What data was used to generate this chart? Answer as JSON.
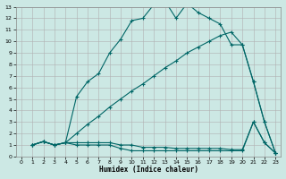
{
  "xlabel": "Humidex (Indice chaleur)",
  "bg_color": "#cce8e4",
  "grid_color": "#b0b0b0",
  "line_color": "#006666",
  "xlim": [
    -0.5,
    23.5
  ],
  "ylim": [
    0,
    13
  ],
  "xticks": [
    0,
    1,
    2,
    3,
    4,
    5,
    6,
    7,
    8,
    9,
    10,
    11,
    12,
    13,
    14,
    15,
    16,
    17,
    18,
    19,
    20,
    21,
    22,
    23
  ],
  "yticks": [
    0,
    1,
    2,
    3,
    4,
    5,
    6,
    7,
    8,
    9,
    10,
    11,
    12,
    13
  ],
  "line1_x": [
    1,
    2,
    3,
    4,
    5,
    6,
    7,
    8,
    9,
    10,
    11,
    12,
    13,
    14,
    15,
    16,
    17,
    18,
    19,
    20,
    21,
    22,
    23
  ],
  "line1_y": [
    1,
    1.3,
    1,
    1.2,
    5.2,
    6.5,
    7.2,
    9.0,
    10.2,
    11.8,
    12.0,
    13.2,
    13.5,
    12.0,
    13.3,
    12.5,
    12.0,
    11.5,
    9.7,
    9.7,
    6.5,
    3.0,
    0.3
  ],
  "line2_x": [
    1,
    2,
    3,
    4,
    5,
    6,
    7,
    8,
    9,
    10,
    11,
    12,
    13,
    14,
    15,
    16,
    17,
    18,
    19,
    20,
    21,
    22,
    23
  ],
  "line2_y": [
    1,
    1.3,
    1,
    1.2,
    2.0,
    2.8,
    3.5,
    4.3,
    5.0,
    5.7,
    6.3,
    7.0,
    7.7,
    8.3,
    9.0,
    9.5,
    10.0,
    10.5,
    10.8,
    9.7,
    6.5,
    3.0,
    0.3
  ],
  "line3_x": [
    1,
    2,
    3,
    4,
    5,
    6,
    7,
    8,
    9,
    10,
    11,
    12,
    13,
    14,
    15,
    16,
    17,
    18,
    19,
    20,
    21,
    22,
    23
  ],
  "line3_y": [
    1,
    1.3,
    1,
    1.2,
    1.0,
    1.0,
    1.0,
    1.0,
    0.7,
    0.5,
    0.5,
    0.5,
    0.5,
    0.5,
    0.5,
    0.5,
    0.5,
    0.5,
    0.5,
    0.5,
    3.0,
    1.2,
    0.3
  ],
  "line4_x": [
    1,
    2,
    3,
    4,
    5,
    6,
    7,
    8,
    9,
    10,
    11,
    12,
    13,
    14,
    15,
    16,
    17,
    18,
    19,
    20,
    21,
    22,
    23
  ],
  "line4_y": [
    1,
    1.3,
    1,
    1.2,
    1.2,
    1.2,
    1.2,
    1.2,
    1.0,
    1.0,
    0.8,
    0.8,
    0.8,
    0.7,
    0.7,
    0.7,
    0.7,
    0.7,
    0.6,
    0.6,
    3.0,
    1.2,
    0.3
  ]
}
